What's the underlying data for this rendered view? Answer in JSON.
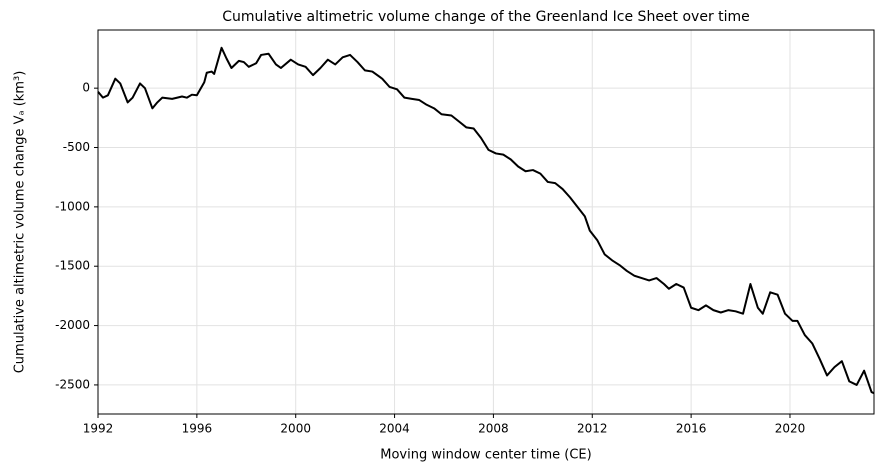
{
  "chart_data": {
    "type": "line",
    "title": "Cumulative altimetric volume change of the Greenland Ice Sheet over time",
    "x_label": "Moving window center time (CE)",
    "y_label": "Cumulative altimetric volume change Vₐ (km³)",
    "x": [
      1992.0,
      1992.2,
      1992.4,
      1992.7,
      1992.9,
      1993.2,
      1993.4,
      1993.7,
      1993.9,
      1994.2,
      1994.4,
      1994.6,
      1995.0,
      1995.4,
      1995.6,
      1995.8,
      1996.0,
      1996.3,
      1996.4,
      1996.6,
      1996.7,
      1997.0,
      1997.2,
      1997.4,
      1997.7,
      1997.9,
      1998.1,
      1998.4,
      1998.6,
      1998.9,
      1999.2,
      1999.4,
      1999.8,
      2000.1,
      2000.4,
      2000.7,
      2001.0,
      2001.3,
      2001.6,
      2001.9,
      2002.2,
      2002.5,
      2002.8,
      2003.1,
      2003.5,
      2003.8,
      2004.1,
      2004.4,
      2004.7,
      2005.0,
      2005.3,
      2005.6,
      2005.9,
      2006.3,
      2006.6,
      2006.9,
      2007.2,
      2007.5,
      2007.8,
      2008.1,
      2008.4,
      2008.7,
      2009.0,
      2009.3,
      2009.6,
      2009.9,
      2010.2,
      2010.5,
      2010.8,
      2011.1,
      2011.4,
      2011.7,
      2011.9,
      2012.2,
      2012.5,
      2012.8,
      2013.1,
      2013.4,
      2013.7,
      2014.0,
      2014.3,
      2014.6,
      2014.9,
      2015.1,
      2015.4,
      2015.7,
      2016.0,
      2016.3,
      2016.6,
      2016.9,
      2017.2,
      2017.5,
      2017.8,
      2018.1,
      2018.4,
      2018.7,
      2018.9,
      2019.2,
      2019.5,
      2019.8,
      2020.1,
      2020.3,
      2020.6,
      2020.9,
      2021.2,
      2021.5,
      2021.8,
      2022.1,
      2022.4,
      2022.7,
      2023.0,
      2023.3,
      2023.4
    ],
    "series": [
      {
        "color": "#000000",
        "values": [
          -30,
          -80,
          -60,
          80,
          40,
          -120,
          -80,
          40,
          0,
          -170,
          -120,
          -80,
          -90,
          -70,
          -80,
          -55,
          -60,
          50,
          130,
          140,
          120,
          340,
          250,
          170,
          230,
          220,
          180,
          210,
          280,
          290,
          200,
          170,
          240,
          200,
          180,
          110,
          170,
          240,
          200,
          260,
          280,
          220,
          150,
          140,
          80,
          10,
          -10,
          -80,
          -90,
          -100,
          -140,
          -170,
          -220,
          -230,
          -280,
          -330,
          -340,
          -420,
          -520,
          -550,
          -560,
          -600,
          -660,
          -700,
          -690,
          -720,
          -790,
          -800,
          -850,
          -920,
          -1000,
          -1080,
          -1200,
          -1280,
          -1400,
          -1450,
          -1490,
          -1540,
          -1580,
          -1600,
          -1620,
          -1600,
          -1650,
          -1690,
          -1650,
          -1680,
          -1850,
          -1870,
          -1830,
          -1870,
          -1890,
          -1870,
          -1880,
          -1900,
          -1650,
          -1850,
          -1900,
          -1720,
          -1740,
          -1900,
          -1960,
          -1960,
          -2080,
          -2150,
          -2280,
          -2420,
          -2350,
          -2300,
          -2470,
          -2500,
          -2380,
          -2560,
          -2570
        ]
      }
    ],
    "xlim": [
      1992,
      2023.4
    ],
    "ylim": [
      -2745,
      490
    ],
    "xticks": [
      1992,
      1996,
      2000,
      2004,
      2008,
      2012,
      2016,
      2020
    ],
    "yticks": [
      0,
      -500,
      -1000,
      -1500,
      -2000,
      -2500
    ],
    "yticks_labels_note_free": true,
    "grid": true
  }
}
